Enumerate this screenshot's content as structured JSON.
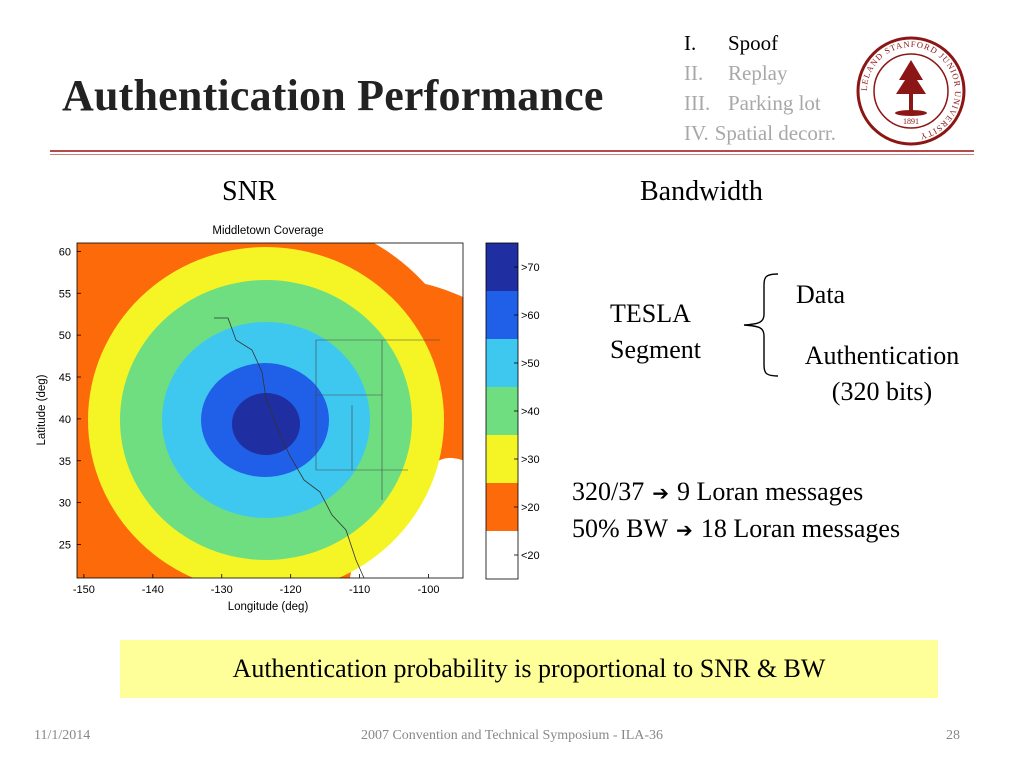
{
  "slide": {
    "title": "Authentication Performance",
    "outline": [
      {
        "num": "I.",
        "text": "Spoof",
        "active": true
      },
      {
        "num": "II.",
        "text": "Replay",
        "active": false
      },
      {
        "num": "III.",
        "text": "Parking lot",
        "active": false
      },
      {
        "num": "IV.",
        "text": "Spatial decorr.",
        "active": false
      }
    ],
    "logo": {
      "icon": "stanford-seal-icon",
      "text": "LELAND STANFORD JUNIOR UNIVERSITY",
      "year": "1891",
      "color": "#8c1515"
    },
    "accent_rule_color": "#b44a4a",
    "snr_label": "SNR",
    "bandwidth_label": "Bandwidth",
    "tesla_segment": {
      "line1": "TESLA",
      "line2": "Segment"
    },
    "segment_parts": {
      "data": "Data",
      "auth_line1": "Authentication",
      "auth_line2": "(320 bits)"
    },
    "calc": [
      {
        "left": "320/37",
        "right": "9 Loran messages"
      },
      {
        "left": "50% BW",
        "right": "18 Loran messages"
      }
    ],
    "conclusion": "Authentication probability  is proportional to SNR & BW",
    "conclusion_bg": "#ffff99"
  },
  "footer": {
    "date": "11/1/2014",
    "center": "2007 Convention and Technical Symposium - ILA-36",
    "page": "28"
  },
  "chart_data": {
    "type": "heatmap",
    "title": "Middletown Coverage",
    "xlabel": "Longitude (deg)",
    "ylabel": "Latitude (deg)",
    "xticks": [
      "-150",
      "-140",
      "-130",
      "-120",
      "-110",
      "-100"
    ],
    "yticks": [
      "60",
      "55",
      "50",
      "45",
      "40",
      "35",
      "30",
      "25"
    ],
    "xlim": [
      -151,
      -95
    ],
    "ylim": [
      21,
      61
    ],
    "center": {
      "lon": -122.5,
      "lat": 40.5
    },
    "bins": [
      {
        "label": ">70",
        "color": "#1f2ea0"
      },
      {
        "label": ">60",
        "color": "#2060e8"
      },
      {
        "label": ">50",
        "color": "#3ec8f0"
      },
      {
        "label": ">40",
        "color": "#6ede80"
      },
      {
        "label": ">30",
        "color": "#f5f526"
      },
      {
        "label": ">20",
        "color": "#fc6a0a"
      },
      {
        "label": "<20",
        "color": "#ffffff"
      }
    ]
  }
}
